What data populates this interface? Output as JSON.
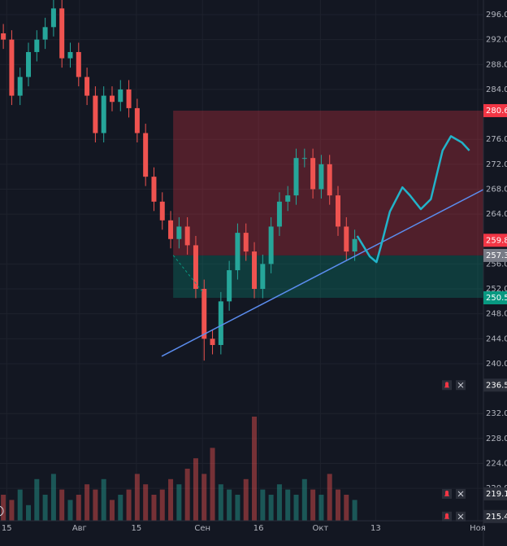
{
  "chart_data": {
    "type": "candlestick",
    "open": [
      293,
      292,
      283,
      286,
      290,
      292,
      294,
      297,
      289,
      290,
      286,
      283,
      277,
      283,
      282,
      284,
      281,
      277,
      270,
      266,
      263,
      260,
      262,
      259,
      252,
      244,
      243,
      250,
      255,
      261,
      258,
      252,
      256,
      262,
      266,
      267,
      273,
      273,
      268,
      272,
      267,
      262,
      258
    ],
    "high": [
      294.5,
      293.5,
      287.5,
      291.5,
      293.5,
      295.5,
      298.5,
      298.5,
      291.5,
      291.5,
      287.5,
      284.5,
      284.5,
      284.5,
      285.5,
      285.5,
      282.5,
      278.5,
      271.5,
      267.5,
      264.5,
      263.5,
      263.5,
      260.5,
      253.5,
      245.5,
      251.5,
      256.5,
      262.5,
      262.5,
      259.5,
      257.5,
      263.5,
      267.5,
      268.5,
      274.5,
      274.5,
      274.5,
      273.5,
      273.5,
      268.5,
      263.5,
      261.5
    ],
    "low": [
      290.5,
      281.5,
      281.5,
      284.5,
      288.5,
      290.5,
      292.5,
      287.5,
      287.5,
      284.5,
      281.5,
      275.5,
      275.5,
      280.5,
      280.5,
      279.5,
      275.5,
      268.5,
      264.5,
      261.5,
      258.5,
      258.5,
      257.5,
      250.5,
      240.5,
      241.5,
      241.5,
      248.5,
      253.5,
      256.5,
      250.5,
      250.5,
      254.5,
      260.5,
      264.5,
      265.5,
      271.5,
      266.5,
      266.5,
      265.5,
      260.5,
      256.5,
      256.5
    ],
    "close": [
      292,
      283,
      286,
      290,
      292,
      294,
      297,
      289,
      290,
      286,
      283,
      277,
      283,
      282,
      284,
      281,
      277,
      270,
      266,
      263,
      260,
      262,
      259,
      252,
      244,
      243,
      250,
      255,
      261,
      258,
      252,
      256,
      262,
      266,
      267,
      273,
      273,
      268,
      272,
      267,
      262,
      258,
      260
    ],
    "volume": [
      5,
      4,
      6,
      3,
      8,
      5,
      9,
      6,
      4,
      5,
      7,
      6,
      8,
      4,
      5,
      6,
      9,
      7,
      5,
      6,
      8,
      7,
      10,
      12,
      9,
      14,
      7,
      6,
      5,
      8,
      20,
      6,
      5,
      7,
      6,
      5,
      8,
      6,
      5,
      9,
      6,
      5,
      4
    ],
    "up_color": "#26a69a",
    "down_color": "#ef5350",
    "xlim": [
      -0.4,
      60.2
    ],
    "ylim": [
      214.8,
      298.35
    ],
    "y2lim": [
      0,
      100
    ],
    "xticks": [
      {
        "value": 0.4,
        "label": "15"
      },
      {
        "value": 9.1,
        "label": "Авг"
      },
      {
        "value": 15.9,
        "label": "15"
      },
      {
        "value": 23.8,
        "label": "Сен"
      },
      {
        "value": 30.5,
        "label": "16"
      },
      {
        "value": 37.9,
        "label": "Окт"
      },
      {
        "value": 44.5,
        "label": "13"
      },
      {
        "value": 56.7,
        "label": "Ноя"
      }
    ],
    "yticks": [
      {
        "value": 296,
        "label": "296.00"
      },
      {
        "value": 292,
        "label": "292.00"
      },
      {
        "value": 288,
        "label": "288.00"
      },
      {
        "value": 284,
        "label": "284.00"
      },
      {
        "value": 276,
        "label": "276.00"
      },
      {
        "value": 272,
        "label": "272.00"
      },
      {
        "value": 268,
        "label": "268.00"
      },
      {
        "value": 264,
        "label": "264.00"
      },
      {
        "value": 256,
        "label": "256.00"
      },
      {
        "value": 252,
        "label": "252.00"
      },
      {
        "value": 248,
        "label": "248.00"
      },
      {
        "value": 244,
        "label": "244.00"
      },
      {
        "value": 240,
        "label": "240.00"
      },
      {
        "value": 232,
        "label": "232.00"
      },
      {
        "value": 228,
        "label": "228.00"
      },
      {
        "value": 224,
        "label": "224.00"
      },
      {
        "value": 220,
        "label": "220.00"
      }
    ],
    "grid": true,
    "price_markers": [
      {
        "value": 280.6,
        "label": "280.60",
        "color": "#f23645",
        "kind": "level"
      },
      {
        "value": 259.8,
        "label": "259.80",
        "color": "#f23645",
        "kind": "level"
      },
      {
        "value": 257.37,
        "label": "257.37",
        "color": "#787b86",
        "kind": "level"
      },
      {
        "value": 250.57,
        "label": "250.57",
        "color": "#089981",
        "kind": "level"
      },
      {
        "value": 236.56,
        "label": "236.56",
        "color": "#2a2e39",
        "kind": "alert"
      },
      {
        "value": 219.12,
        "label": "219.12",
        "color": "#2a2e39",
        "kind": "alert"
      },
      {
        "value": 215.48,
        "label": "215.48",
        "color": "#2a2e39",
        "kind": "alert"
      }
    ],
    "zones": [
      {
        "x": [
          20.3,
          60.2
        ],
        "y": [
          257.37,
          280.6
        ],
        "color": "#f23645"
      },
      {
        "x": [
          20.3,
          60.2
        ],
        "y": [
          250.57,
          257.37
        ],
        "color": "#089981"
      }
    ],
    "trend_line": {
      "x": [
        18.93,
        60.2
      ],
      "y": [
        241.2,
        269.9
      ],
      "color": "#5b8def"
    },
    "dashed_line": {
      "x": [
        20.3,
        23.9
      ],
      "y": [
        257.4,
        251.4
      ],
      "color": "#089981"
    },
    "sketch": {
      "x": [
        42.3,
        43.8,
        44.6,
        45.2,
        46.2,
        47.7,
        48.6,
        49.9,
        51.1,
        51.8,
        52.5,
        53.5,
        54.8,
        55.7
      ],
      "y": [
        260.5,
        257.2,
        256.3,
        259.2,
        264.4,
        268.3,
        267.0,
        264.8,
        266.4,
        270.3,
        274.2,
        276.5,
        275.5,
        274.2
      ],
      "color": "#22b3c9"
    }
  }
}
